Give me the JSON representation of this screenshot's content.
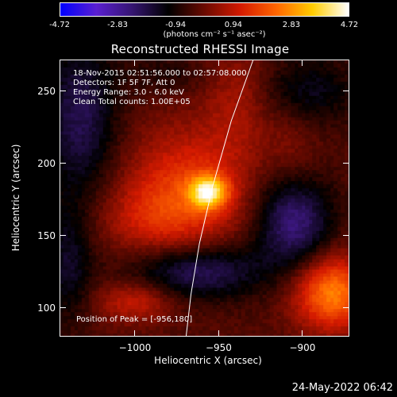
{
  "colorbar": {
    "ticks": [
      "-4.72",
      "-2.83",
      "-0.94",
      "0.94",
      "2.83",
      "4.72"
    ],
    "tick_values": [
      -4.72,
      -2.83,
      -0.94,
      0.94,
      2.83,
      4.72
    ],
    "unit": "(photons cm⁻² s⁻¹ asec⁻²)",
    "colors": [
      "#0000ff",
      "#5a1fd1",
      "#351570",
      "#000000",
      "#6a0a00",
      "#d41a00",
      "#ff6600",
      "#ffcc00",
      "#ffffff"
    ]
  },
  "title": "Reconstructed RHESSI Image",
  "info": [
    "18-Nov-2015 02:51:56.000 to 02:57:08.000",
    "Detectors: 1F 5F 7F, Att 0",
    "Energy Range: 3.0 - 6.0 keV",
    "Clean     Total counts: 1.00E+05"
  ],
  "peak_label": "Position of Peak = [-956,180]",
  "datestamp": "24-May-2022 06:42",
  "chart_data": {
    "type": "heatmap",
    "title": "Reconstructed RHESSI Image",
    "xlabel": "Heliocentric X (arcsec)",
    "ylabel": "Heliocentric Y (arcsec)",
    "xlim": [
      -1045,
      -872
    ],
    "ylim": [
      80,
      272
    ],
    "xticks": [
      -1000,
      -950,
      -900
    ],
    "xtick_labels": [
      "−1000",
      "−950",
      "−900"
    ],
    "yticks": [
      100,
      150,
      200,
      250
    ],
    "ytick_labels": [
      "100",
      "150",
      "200",
      "250"
    ],
    "value_range": [
      -4.72,
      4.72
    ],
    "peak": [
      -956,
      180
    ],
    "blobs": [
      {
        "x": -956,
        "y": 180,
        "amp": 3.4,
        "sx": 8,
        "sy": 8
      },
      {
        "x": -968,
        "y": 182,
        "amp": 1.9,
        "sx": 26,
        "sy": 30
      },
      {
        "x": -992,
        "y": 160,
        "amp": 0.9,
        "sx": 22,
        "sy": 18
      },
      {
        "x": -938,
        "y": 245,
        "amp": 0.9,
        "sx": 14,
        "sy": 28
      },
      {
        "x": -905,
        "y": 215,
        "amp": 0.6,
        "sx": 12,
        "sy": 30
      },
      {
        "x": -882,
        "y": 110,
        "amp": 3.0,
        "sx": 16,
        "sy": 18
      },
      {
        "x": -1000,
        "y": 104,
        "amp": 1.4,
        "sx": 16,
        "sy": 10
      },
      {
        "x": -1033,
        "y": 232,
        "amp": -1.7,
        "sx": 16,
        "sy": 40
      },
      {
        "x": -963,
        "y": 125,
        "amp": -2.0,
        "sx": 28,
        "sy": 14
      },
      {
        "x": -905,
        "y": 160,
        "amp": -2.3,
        "sx": 16,
        "sy": 24
      },
      {
        "x": -898,
        "y": 250,
        "amp": -1.3,
        "sx": 20,
        "sy": 18
      },
      {
        "x": -1040,
        "y": 130,
        "amp": -1.2,
        "sx": 10,
        "sy": 30
      },
      {
        "x": -980,
        "y": 262,
        "amp": -0.6,
        "sx": 18,
        "sy": 10
      }
    ],
    "limb": [
      [
        -930,
        272
      ],
      [
        -943,
        230
      ],
      [
        -954,
        185
      ],
      [
        -962,
        145
      ],
      [
        -967,
        110
      ],
      [
        -970,
        80
      ]
    ]
  }
}
